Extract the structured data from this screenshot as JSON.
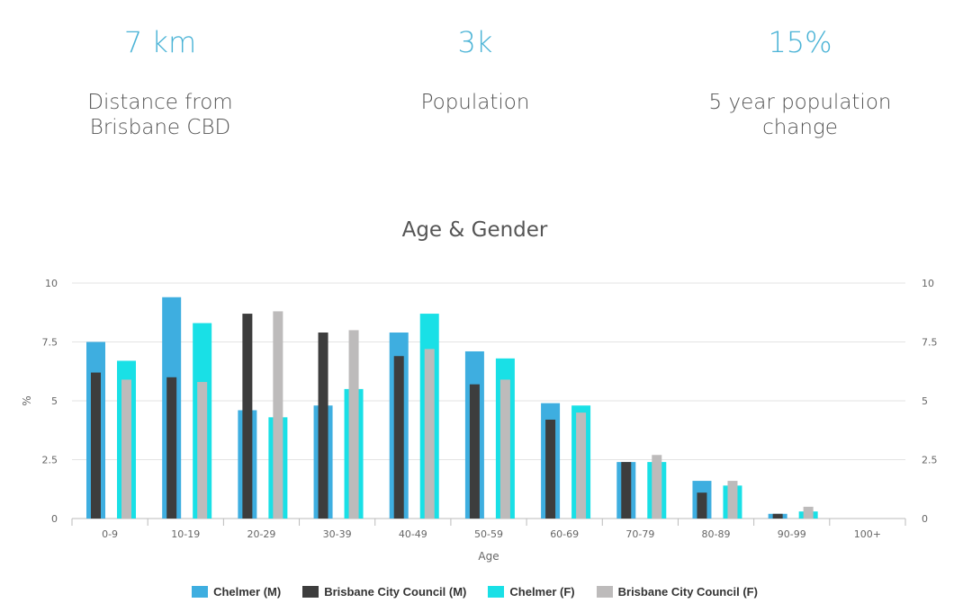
{
  "stats": [
    {
      "value": "7 km",
      "label": "Distance from Brisbane CBD"
    },
    {
      "value": "3k",
      "label": "Population"
    },
    {
      "value": "15%",
      "label": "5 year population change"
    }
  ],
  "chart_data": {
    "type": "bar",
    "title": "Age & Gender",
    "xlabel": "Age",
    "ylabel": "%",
    "ylim": [
      0,
      10
    ],
    "y_ticks": [
      "0",
      "2.5",
      "5",
      "7.5",
      "10"
    ],
    "grid": true,
    "legend_position": "bottom",
    "categories": [
      "0-9",
      "10-19",
      "20-29",
      "30-39",
      "40-49",
      "50-59",
      "60-69",
      "70-79",
      "80-89",
      "90-99",
      "100+"
    ],
    "series": [
      {
        "name": "Chelmer (M)",
        "color": "#3eaee0",
        "values": [
          7.5,
          9.4,
          4.6,
          4.8,
          7.9,
          7.1,
          4.9,
          2.4,
          1.6,
          0.2,
          0
        ]
      },
      {
        "name": "Brisbane City Council (M)",
        "color": "#3d3d3d",
        "values": [
          6.2,
          6.0,
          8.7,
          7.9,
          6.9,
          5.7,
          4.2,
          2.4,
          1.1,
          0.2,
          0
        ]
      },
      {
        "name": "Chelmer (F)",
        "color": "#19e0e6",
        "values": [
          6.7,
          8.3,
          4.3,
          5.5,
          8.7,
          6.8,
          4.8,
          2.4,
          1.4,
          0.3,
          0
        ]
      },
      {
        "name": "Brisbane City Council (F)",
        "color": "#bdbbbb",
        "values": [
          5.9,
          5.8,
          8.8,
          8.0,
          7.2,
          5.9,
          4.5,
          2.7,
          1.6,
          0.5,
          0
        ]
      }
    ]
  }
}
